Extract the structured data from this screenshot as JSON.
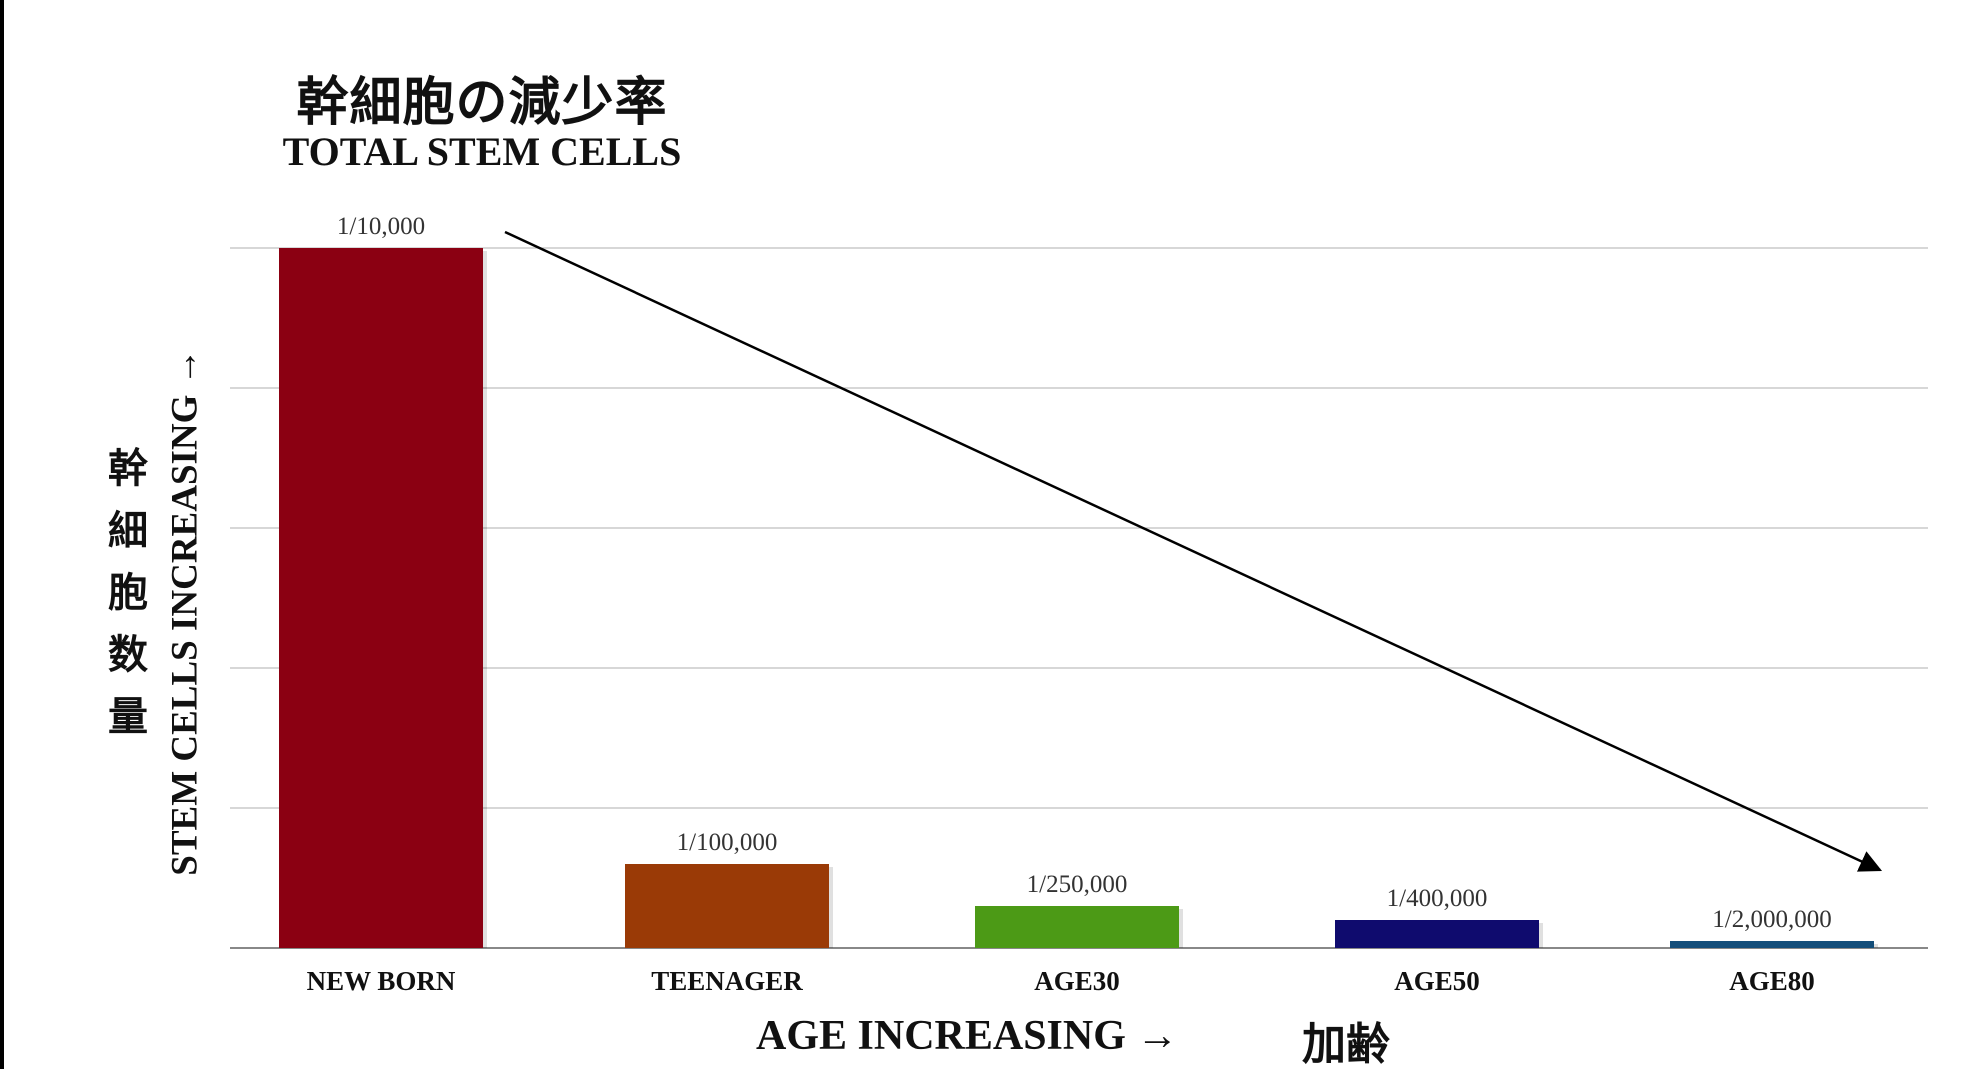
{
  "title_jp": "幹細胞の減少率",
  "title_en": "TOTAL STEM CELLS",
  "y_label_en": "STEM CELLS INCREASING →",
  "y_label_jp": "幹細胞数量",
  "x_label_en": "AGE INCREASING →",
  "x_label_jp": "加齢",
  "chart_data": {
    "type": "bar",
    "title": "幹細胞の減少率",
    "subtitle": "TOTAL STEM CELLS",
    "xlabel": "AGE INCREASING →  加齢",
    "ylabel": "STEM CELLS INCREASING →  幹細胞数量",
    "categories": [
      "NEW BORN",
      "TEENAGER",
      "AGE30",
      "AGE50",
      "AGE80"
    ],
    "data_labels": [
      "1/10,000",
      "1/100,000",
      "1/250,000",
      "1/400,000",
      "1/2,000,000"
    ],
    "values": [
      1.0,
      0.12,
      0.06,
      0.04,
      0.01
    ],
    "colors": [
      "#8b0012",
      "#9a3a06",
      "#4c9a16",
      "#0f0b6e",
      "#144e7a"
    ],
    "ylim": [
      0,
      1
    ],
    "grid": true,
    "gridlines": 5,
    "trend_arrow": true
  }
}
